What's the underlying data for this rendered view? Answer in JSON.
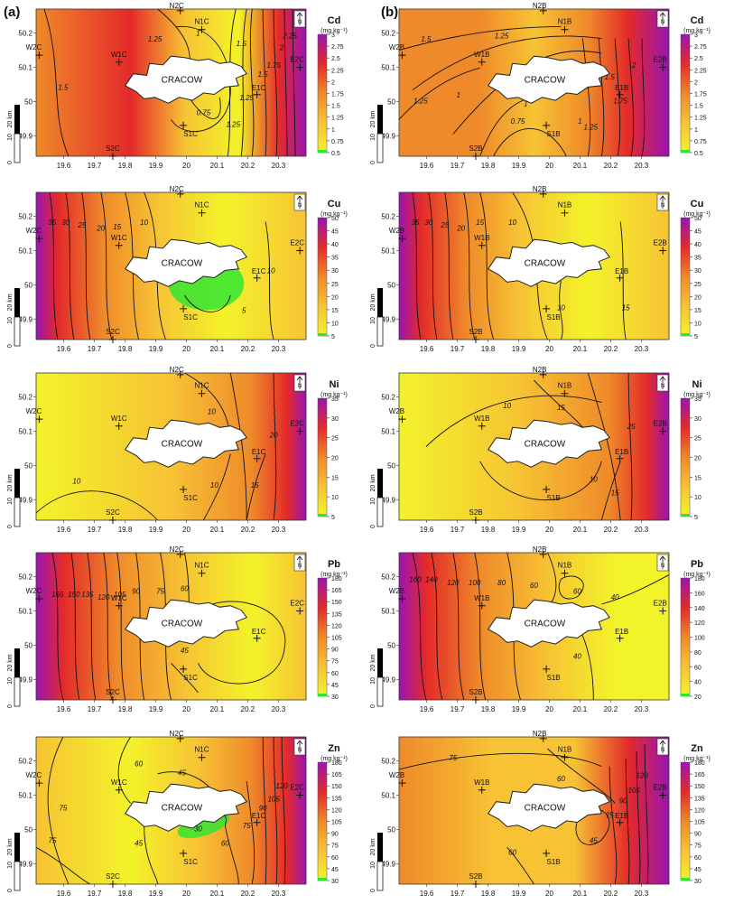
{
  "figure": {
    "columns": [
      {
        "label": "(a)",
        "suffix": "C"
      },
      {
        "label": "(b)",
        "suffix": "B"
      }
    ],
    "city_label": "CRACOW",
    "north_symbol": "N",
    "scale_bar": {
      "label": "20 km",
      "ticks": [
        "10",
        "0"
      ]
    },
    "x_ticks": [
      "19.6",
      "19.7",
      "19.8",
      "19.9",
      "20",
      "20.1",
      "20.2",
      "20.3"
    ],
    "y_ticks": [
      "50.2",
      "50.1",
      "50",
      "49.9"
    ],
    "units": "(mg kg⁻¹)",
    "colors": {
      "low": "#f3f32a",
      "mid_low": "#f7c334",
      "mid": "#ef8a2a",
      "high": "#e32a2a",
      "top": "#9a14b4",
      "min_green": "#33e533",
      "city_fill": "#ffffff",
      "contour": "#111111"
    }
  },
  "panels": [
    {
      "element": "Cd",
      "col": 0,
      "legend_ticks": [
        "3",
        "2.75",
        "2.5",
        "2.25",
        "2",
        "1.75",
        "1.5",
        "1.25",
        "1",
        "0.75",
        "0.5"
      ],
      "stations": [
        "N2C",
        "N1C",
        "W2C",
        "W1C",
        "E1C",
        "E2C",
        "S1C",
        "S2C"
      ],
      "contour_labels": [
        "1.5",
        "1.25",
        "1",
        "0.75",
        "1.25",
        "1.5",
        "1.75",
        "2",
        "2.25",
        "1.5",
        "1.25"
      ]
    },
    {
      "element": "Cd",
      "col": 1,
      "legend_ticks": [
        "3",
        "2.75",
        "2.5",
        "2.25",
        "2",
        "1.75",
        "1.5",
        "1.25",
        "1",
        "0.75",
        "0.5"
      ],
      "stations": [
        "N2B",
        "N1B",
        "W2B",
        "W1B",
        "E1B",
        "E2B",
        "S1B",
        "S2B"
      ],
      "contour_labels": [
        "1.5",
        "1.25",
        "1",
        "1.25",
        "1",
        "0.75",
        "1",
        "1.25",
        "1.5",
        "1.75",
        "2"
      ]
    },
    {
      "element": "Cu",
      "col": 0,
      "legend_ticks": [
        "50",
        "45",
        "40",
        "35",
        "30",
        "25",
        "20",
        "15",
        "10",
        "5"
      ],
      "stations": [
        "N2C",
        "N1C",
        "W2C",
        "W1C",
        "E1C",
        "E2C",
        "S1C",
        "S2C"
      ],
      "contour_labels": [
        "35",
        "30",
        "25",
        "20",
        "15",
        "10",
        "10",
        "5"
      ]
    },
    {
      "element": "Cu",
      "col": 1,
      "legend_ticks": [
        "50",
        "45",
        "40",
        "35",
        "30",
        "25",
        "20",
        "15",
        "10",
        "5"
      ],
      "stations": [
        "N2B",
        "N1B",
        "W2B",
        "W1B",
        "E1B",
        "E2B",
        "S1B",
        "S2B"
      ],
      "contour_labels": [
        "35",
        "30",
        "25",
        "20",
        "15",
        "10",
        "10",
        "15"
      ]
    },
    {
      "element": "Ni",
      "col": 0,
      "legend_ticks": [
        "35",
        "30",
        "25",
        "20",
        "15",
        "10",
        "5"
      ],
      "stations": [
        "N2C",
        "N1C",
        "W2C",
        "W1C",
        "E1C",
        "E2C",
        "S1C",
        "S2C"
      ],
      "contour_labels": [
        "10",
        "15",
        "20",
        "10",
        "10",
        "15"
      ]
    },
    {
      "element": "Ni",
      "col": 1,
      "legend_ticks": [
        "35",
        "30",
        "25",
        "20",
        "15",
        "10",
        "5"
      ],
      "stations": [
        "N2B",
        "N1B",
        "W2B",
        "W1B",
        "E1B",
        "E2B",
        "S1B",
        "S2B"
      ],
      "contour_labels": [
        "10",
        "15",
        "20",
        "25",
        "10",
        "15"
      ]
    },
    {
      "element": "Pb",
      "col": 0,
      "legend_ticks": [
        "180",
        "165",
        "150",
        "135",
        "120",
        "105",
        "90",
        "75",
        "60",
        "45",
        "30"
      ],
      "stations": [
        "N2C",
        "N1C",
        "W2C",
        "W1C",
        "E1C",
        "E2C",
        "S1C",
        "S2C"
      ],
      "contour_labels": [
        "165",
        "150",
        "135",
        "120",
        "105",
        "90",
        "75",
        "60",
        "45",
        "45"
      ]
    },
    {
      "element": "Pb",
      "col": 1,
      "legend_ticks": [
        "180",
        "160",
        "140",
        "120",
        "100",
        "80",
        "60",
        "40",
        "20"
      ],
      "stations": [
        "N2B",
        "N1B",
        "W2B",
        "W1B",
        "E1B",
        "E2B",
        "S1B",
        "S2B"
      ],
      "contour_labels": [
        "160",
        "140",
        "120",
        "100",
        "80",
        "60",
        "40",
        "60",
        "40"
      ]
    },
    {
      "element": "Zn",
      "col": 0,
      "legend_ticks": [
        "180",
        "165",
        "150",
        "135",
        "120",
        "105",
        "90",
        "75",
        "60",
        "45",
        "30"
      ],
      "stations": [
        "N2C",
        "N1C",
        "W2C",
        "W1C",
        "E1C",
        "E2C",
        "S1C",
        "S2C"
      ],
      "contour_labels": [
        "75",
        "60",
        "45",
        "30",
        "45",
        "60",
        "75",
        "90",
        "105",
        "120",
        "75"
      ]
    },
    {
      "element": "Zn",
      "col": 1,
      "legend_ticks": [
        "180",
        "165",
        "150",
        "135",
        "120",
        "105",
        "90",
        "75",
        "60",
        "45",
        "30"
      ],
      "stations": [
        "N2B",
        "N1B",
        "W2B",
        "W1B",
        "E1B",
        "E2B",
        "S1B",
        "S2B"
      ],
      "contour_labels": [
        "75",
        "60",
        "45",
        "60",
        "75",
        "90",
        "105",
        "120"
      ]
    }
  ]
}
